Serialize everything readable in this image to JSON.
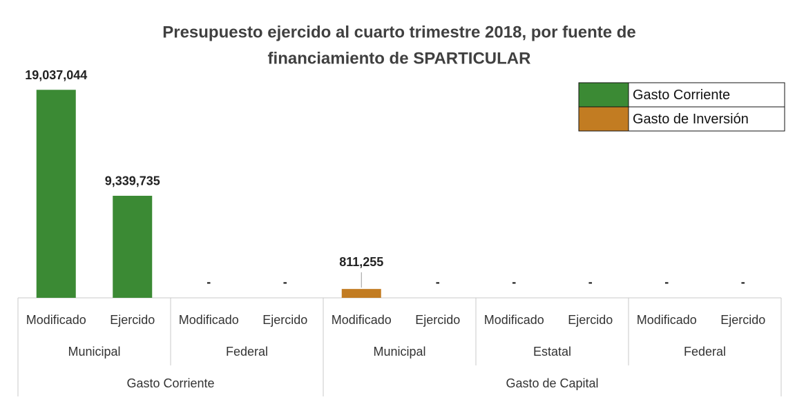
{
  "chart_data": {
    "type": "bar",
    "title": [
      "Presupuesto ejercido al cuarto trimestre 2018, por fuente de",
      "financiamiento de SPARTICULAR"
    ],
    "groups": [
      {
        "name": "Gasto Corriente",
        "subgroups": [
          {
            "name": "Municipal",
            "categories": [
              "Modificado",
              "Ejercido"
            ]
          },
          {
            "name": "Federal",
            "categories": [
              "Modificado",
              "Ejercido"
            ]
          }
        ]
      },
      {
        "name": "Gasto de Capital",
        "subgroups": [
          {
            "name": "Municipal",
            "categories": [
              "Modificado",
              "Ejercido"
            ]
          },
          {
            "name": "Estatal",
            "categories": [
              "Modificado",
              "Ejercido"
            ]
          },
          {
            "name": "Federal",
            "categories": [
              "Modificado",
              "Ejercido"
            ]
          }
        ]
      }
    ],
    "series": [
      {
        "name": "Gasto Corriente",
        "color": "#3b8a34",
        "values": [
          19037044,
          9339735,
          0,
          0,
          null,
          null,
          null,
          null,
          null,
          null
        ],
        "value_labels": [
          "19,037,044",
          "9,339,735",
          "-",
          "-",
          null,
          null,
          null,
          null,
          null,
          null
        ]
      },
      {
        "name": "Gasto de Inversión",
        "color": "#c27c22",
        "values": [
          null,
          null,
          null,
          null,
          811255,
          0,
          0,
          0,
          0,
          0
        ],
        "value_labels": [
          null,
          null,
          null,
          null,
          "811,255",
          "-",
          "-",
          "-",
          "-",
          "-"
        ]
      }
    ],
    "ylim": [
      0,
      20000000
    ],
    "legend": "upper right"
  }
}
